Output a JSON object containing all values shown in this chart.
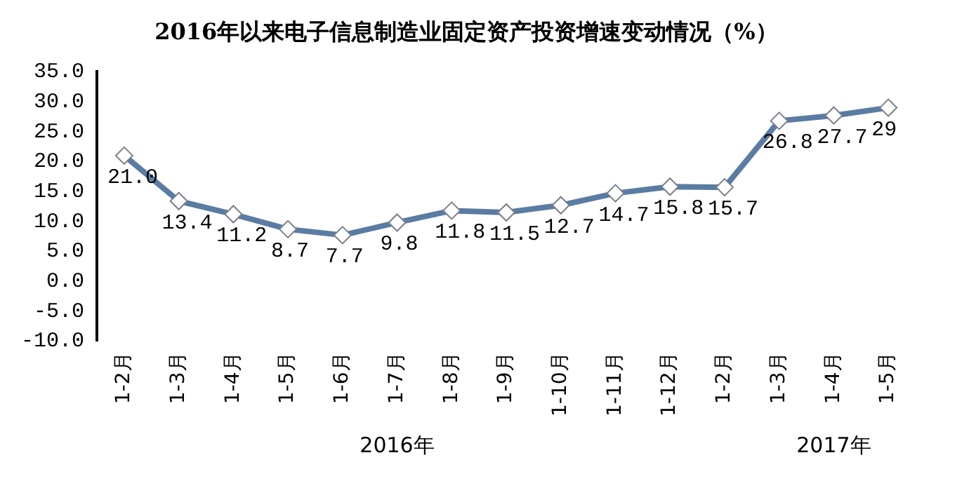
{
  "chart_data": {
    "type": "line",
    "title": "2016年以来电子信息制造业固定资产投资增速变动情况（%）",
    "categories": [
      "1-2月",
      "1-3月",
      "1-4月",
      "1-5月",
      "1-6月",
      "1-7月",
      "1-8月",
      "1-9月",
      "1-10月",
      "1-11月",
      "1-12月",
      "1-2月",
      "1-3月",
      "1-4月",
      "1-5月"
    ],
    "series": [
      {
        "color": "#5a7ca3",
        "values": [
          21.0,
          13.4,
          11.2,
          8.7,
          7.7,
          9.8,
          11.8,
          11.5,
          12.7,
          14.7,
          15.8,
          15.7,
          26.8,
          27.7,
          29
        ],
        "value_labels": [
          "21.0",
          "13.4",
          "11.2",
          "8.7",
          "7.7",
          "9.8",
          "11.8",
          "11.5",
          "12.7",
          "14.7",
          "15.8",
          "15.7",
          "26.8",
          "27.7",
          "29"
        ]
      }
    ],
    "ylim": [
      -10,
      35
    ],
    "yticks": [
      {
        "value": -10,
        "label": "-10.0"
      },
      {
        "value": -5,
        "label": "-5.0"
      },
      {
        "value": 0,
        "label": "0.0"
      },
      {
        "value": 5,
        "label": "5.0"
      },
      {
        "value": 10,
        "label": "10.0"
      },
      {
        "value": 15,
        "label": "15.0"
      },
      {
        "value": 20,
        "label": "20.0"
      },
      {
        "value": 25,
        "label": "25.0"
      },
      {
        "value": 30,
        "label": "30.0"
      },
      {
        "value": 35,
        "label": "35.0"
      }
    ],
    "annotations": [
      "2016年",
      "2017年"
    ],
    "grid": false,
    "legend": false,
    "marker": "diamond",
    "line_style": "solid"
  }
}
